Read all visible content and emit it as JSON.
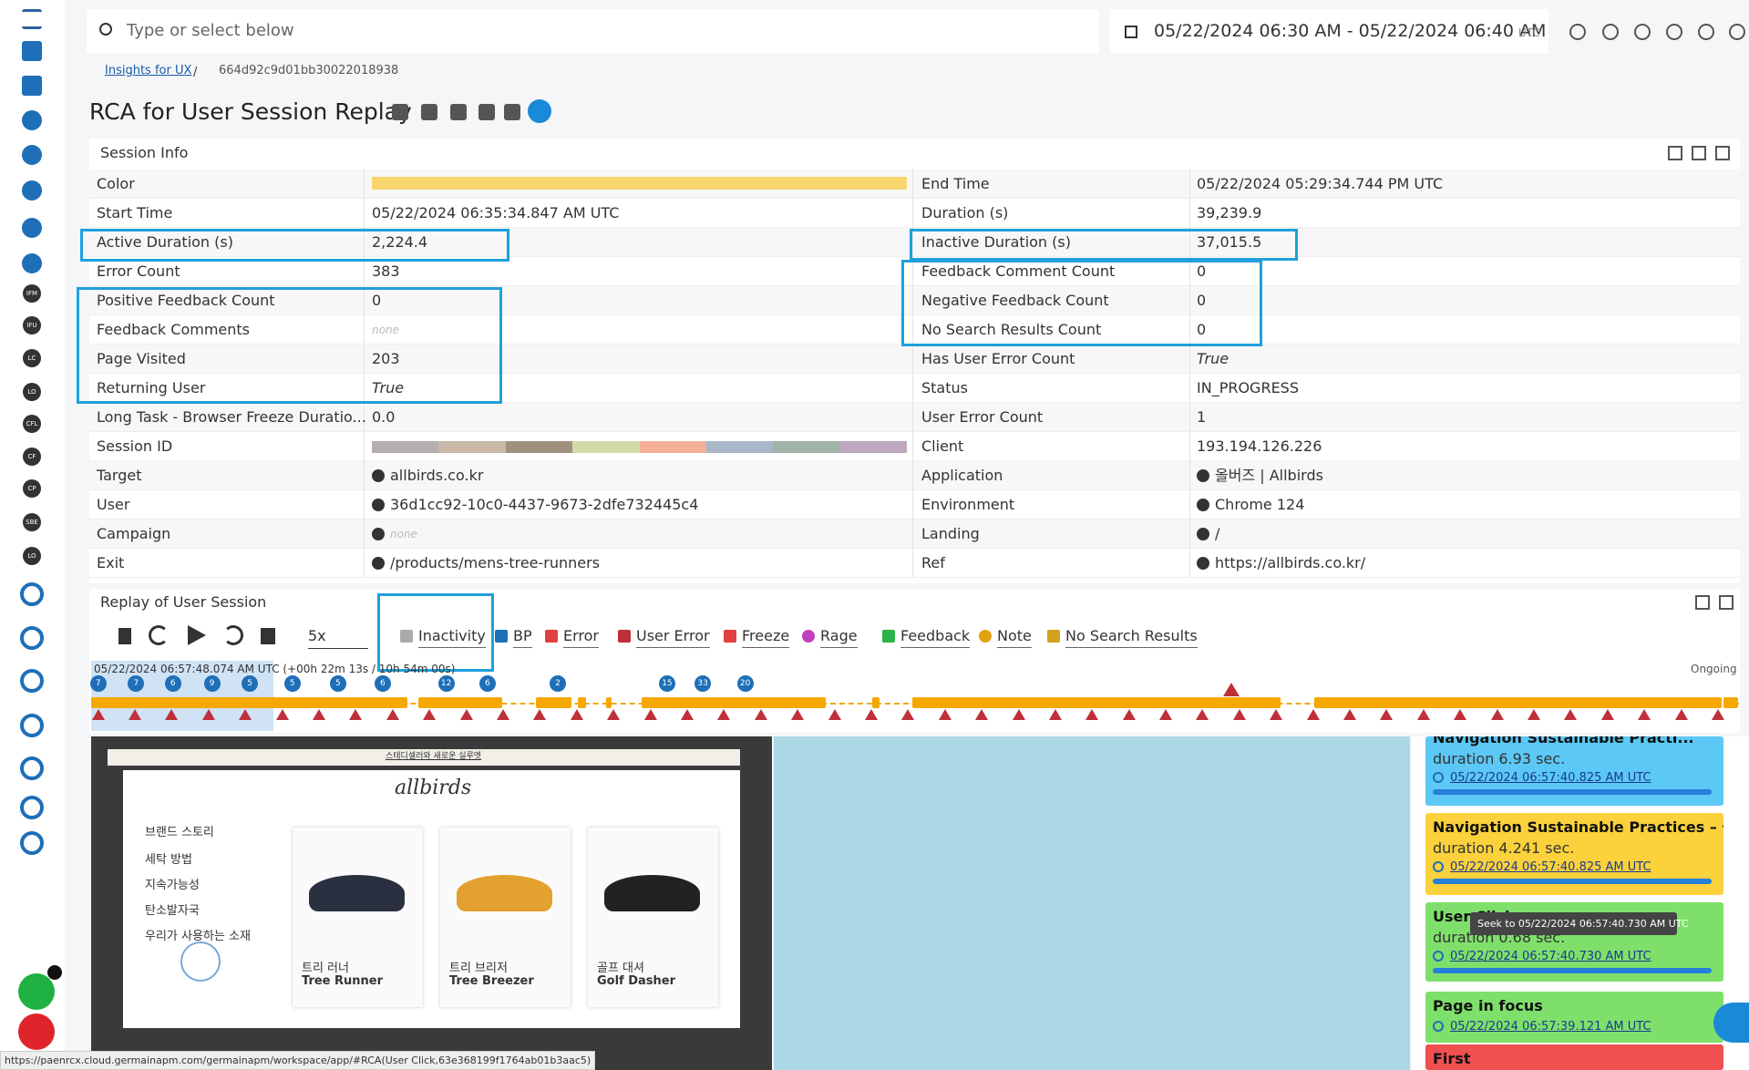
{
  "sidebar": {
    "badges": [
      "IFM",
      "IFU",
      "LC",
      "LO",
      "CFL",
      "CF",
      "CP",
      "SBE",
      "LO"
    ]
  },
  "topbar": {
    "search_placeholder": "Type or select below",
    "date_range": "05/22/2024 06:30 AM - 05/22/2024 06:40 AM",
    "timezone": "UTC"
  },
  "breadcrumb": {
    "parent": "Insights for UX",
    "separator": "/",
    "current": "664d92c9d01bb30022018938"
  },
  "page_title": "RCA for User Session Replay",
  "session_info": {
    "title": "Session Info",
    "left": [
      {
        "label": "Color"
      },
      {
        "label": "Start Time",
        "value": "05/22/2024 06:35:34.847 AM UTC"
      },
      {
        "label": "Active Duration (s)",
        "value": "2,224.4"
      },
      {
        "label": "Error Count",
        "value": "383"
      },
      {
        "label": "Positive Feedback Count",
        "value": "0"
      },
      {
        "label": "Feedback Comments",
        "value": "none"
      },
      {
        "label": "Page Visited",
        "value": "203"
      },
      {
        "label": "Returning User",
        "value": "True"
      },
      {
        "label": "Long Task - Browser Freeze Duratio...",
        "value": "0.0"
      },
      {
        "label": "Session ID"
      },
      {
        "label": "Target",
        "value": "allbirds.co.kr"
      },
      {
        "label": "User",
        "value": "36d1cc92-10c0-4437-9673-2dfe732445c4"
      },
      {
        "label": "Campaign",
        "value": "none"
      },
      {
        "label": "Exit",
        "value": "/products/mens-tree-runners"
      }
    ],
    "right": [
      {
        "label": "End Time",
        "value": "05/22/2024 05:29:34.744 PM UTC"
      },
      {
        "label": "Duration (s)",
        "value": "39,239.9"
      },
      {
        "label": "Inactive Duration (s)",
        "value": "37,015.5"
      },
      {
        "label": "Feedback Comment Count",
        "value": "0"
      },
      {
        "label": "Negative Feedback Count",
        "value": "0"
      },
      {
        "label": "No Search Results Count",
        "value": "0"
      },
      {
        "label": "Has User Error Count",
        "value": "True"
      },
      {
        "label": "Status",
        "value": "IN_PROGRESS"
      },
      {
        "label": "User Error Count",
        "value": "1"
      },
      {
        "label": "Client",
        "value": "193.194.126.226"
      },
      {
        "label": "Application",
        "value": "올버즈 | Allbirds"
      },
      {
        "label": "Environment",
        "value": "Chrome 124"
      },
      {
        "label": "Landing",
        "value": "/"
      },
      {
        "label": "Ref",
        "value": "https://allbirds.co.kr/"
      }
    ]
  },
  "replay": {
    "title": "Replay of User Session",
    "speed": "5x",
    "legend": [
      "Inactivity",
      "BP",
      "Error",
      "User Error",
      "Freeze",
      "Rage",
      "Feedback",
      "Note",
      "No Search Results"
    ],
    "timeline": {
      "position": "05/22/2024 06:57:48.074 AM UTC (+00h 22m 13s / 10h 54m 00s)",
      "status": "Ongoing",
      "markers": [
        "7",
        "7",
        "6",
        "9",
        "5",
        "5",
        "5",
        "6",
        "12",
        "6",
        "2",
        "15",
        "33",
        "20"
      ]
    },
    "preview": {
      "banner": "스테디셀러와 새로운 실루엣",
      "logo": "allbirds",
      "menu": [
        "브랜드 스토리",
        "세탁 방법",
        "지속가능성",
        "탄소발자국",
        "우리가 사용하는 소재"
      ],
      "products": [
        {
          "korean": "트리 러너",
          "name": "Tree Runner"
        },
        {
          "korean": "트리 브리저",
          "name": "Tree Breezer"
        },
        {
          "korean": "골프 대셔",
          "name": "Golf Dasher"
        }
      ]
    },
    "events": [
      {
        "title": "Navigation Sustainable Practi...",
        "duration": "duration 6.93 sec.",
        "time": "05/22/2024 06:57:40.825 AM UTC"
      },
      {
        "title": "Navigation Sustainable Practices – 올",
        "duration": "duration 4.241 sec.",
        "time": "05/22/2024 06:57:40.825 AM UTC"
      },
      {
        "title": "User Click",
        "duration": "duration 0.68 sec.",
        "time": "05/22/2024 06:57:40.730 AM UTC"
      },
      {
        "title": "Page in focus",
        "time": "05/22/2024 06:57:39.121 AM UTC"
      },
      {
        "title": "First"
      }
    ],
    "tooltip": "Seek to 05/22/2024 06:57:40.730 AM UTC"
  },
  "status_url": "https://paenrcx.cloud.germainapm.com/germainapm/workspace/app/#RCA(User Click,63e368199f1764ab01b3aac5)"
}
